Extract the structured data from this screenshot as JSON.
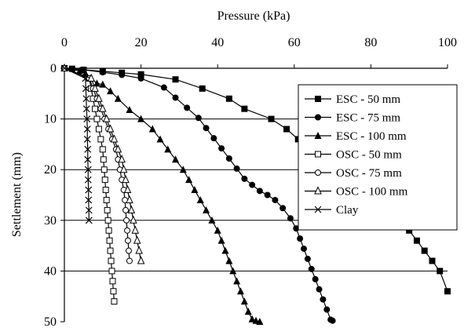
{
  "chart_data": {
    "type": "line",
    "xlabel": "Pressure (kPa)",
    "ylabel": "Settlement (mm)",
    "xlim": [
      0,
      100
    ],
    "ylim": [
      0,
      50
    ],
    "y_inverted": true,
    "x_axis_position": "top",
    "xticks": [
      "0",
      "20",
      "40",
      "60",
      "80",
      "100"
    ],
    "yticks": [
      "0",
      "10",
      "20",
      "30",
      "40",
      "50"
    ],
    "grid": "horizontal",
    "legend_position": "top-right",
    "series": [
      {
        "name": "ESC - 50 mm",
        "marker": "square-filled",
        "x": [
          0,
          2,
          5,
          10,
          15,
          20,
          29,
          36,
          43,
          47,
          54,
          58,
          61,
          63,
          65,
          67,
          69,
          71,
          72.5,
          74,
          75,
          76,
          77,
          78.5,
          80,
          82,
          84,
          86,
          88,
          90,
          92,
          94,
          96,
          98,
          100
        ],
        "y": [
          0,
          0.1,
          0.3,
          0.6,
          0.9,
          1.2,
          2.2,
          4,
          6,
          8,
          10,
          12,
          14,
          16,
          16.5,
          17,
          17.6,
          18.2,
          18.8,
          19.4,
          20,
          20.6,
          21.2,
          22,
          23,
          24.5,
          26,
          28,
          30,
          32,
          34,
          36,
          38,
          40,
          44
        ]
      },
      {
        "name": "ESC - 75 mm",
        "marker": "circle-filled",
        "x": [
          0,
          5,
          10,
          15,
          20,
          26,
          29,
          32,
          35,
          37,
          39,
          41,
          43,
          45,
          47,
          49,
          51,
          53,
          55,
          57,
          59,
          60.5,
          61.5,
          62.5,
          63.5,
          64.5,
          65.5,
          66.5,
          67.5,
          68.5,
          69.5,
          70
        ],
        "y": [
          0,
          0.3,
          0.8,
          1.3,
          2,
          3.8,
          5.8,
          7.8,
          9.8,
          11.8,
          13.8,
          15.8,
          17.8,
          19.8,
          21.8,
          23,
          24.2,
          25,
          26,
          27.6,
          29.6,
          31.6,
          33.6,
          35.6,
          37.6,
          39.6,
          41.6,
          43.6,
          45.6,
          47.6,
          49.6,
          49.8
        ]
      },
      {
        "name": "ESC - 100 mm",
        "marker": "triangle-filled",
        "x": [
          0,
          4,
          5.5,
          7,
          8.5,
          10,
          12,
          14,
          17,
          20,
          23,
          25,
          27,
          29,
          31,
          32.5,
          34,
          35.5,
          37,
          38.5,
          40,
          41,
          42,
          43,
          44,
          45,
          46,
          47,
          48,
          49,
          50,
          51
        ],
        "y": [
          0,
          0.5,
          1,
          2,
          3,
          3.2,
          4.5,
          6,
          8.2,
          10,
          12,
          14,
          16,
          18,
          20,
          22,
          24,
          26,
          28,
          30,
          32,
          34,
          36,
          38,
          40,
          42,
          44,
          46,
          48,
          49.5,
          49.8,
          50
        ]
      },
      {
        "name": "OSC - 50 mm",
        "marker": "square-open",
        "x": [
          0,
          6.5,
          7,
          7.5,
          8,
          8.5,
          9,
          9.5,
          10,
          10.2,
          10.4,
          10.6,
          10.8,
          11,
          11.2,
          11.4,
          11.6,
          11.8,
          12,
          12.2,
          12.4,
          12.6,
          12.8,
          13
        ],
        "y": [
          0,
          2,
          4,
          6,
          8,
          10,
          12,
          14,
          16,
          18,
          20,
          22,
          24,
          26,
          28,
          30,
          32,
          34,
          36,
          38,
          40,
          42,
          44,
          46
        ]
      },
      {
        "name": "OSC - 75 mm",
        "marker": "circle-open",
        "x": [
          0,
          6.5,
          7.5,
          8.5,
          9.5,
          10.5,
          11.5,
          12.5,
          13.5,
          14,
          14.5,
          15,
          15.5,
          15.8,
          16,
          16.2,
          16.4,
          16.6,
          16.8,
          17
        ],
        "y": [
          0,
          2,
          4,
          6,
          8,
          10,
          12,
          14,
          16,
          18,
          20,
          22,
          24,
          26,
          28,
          30,
          32,
          34,
          36,
          38
        ]
      },
      {
        "name": "OSC - 100 mm",
        "marker": "triangle-open",
        "x": [
          0,
          7,
          8,
          9,
          10,
          11,
          12,
          13,
          14,
          15,
          15.5,
          16,
          16.5,
          17,
          17.5,
          18,
          18.5,
          19,
          19.5,
          20
        ],
        "y": [
          0,
          2,
          4,
          6,
          8,
          10,
          12,
          14,
          16,
          18,
          20,
          22,
          24,
          26,
          28,
          30,
          32,
          34,
          36,
          38
        ]
      },
      {
        "name": "Clay",
        "marker": "x",
        "x": [
          0,
          5.5,
          5.6,
          5.7,
          5.8,
          5.9,
          6,
          6,
          6.1,
          6.1,
          6.2,
          6.2,
          6.3,
          6.3,
          6.4,
          6.4
        ],
        "y": [
          0,
          2,
          4,
          6,
          8,
          10,
          12,
          14,
          16,
          18,
          20,
          22,
          24,
          26,
          28,
          30
        ]
      }
    ]
  }
}
